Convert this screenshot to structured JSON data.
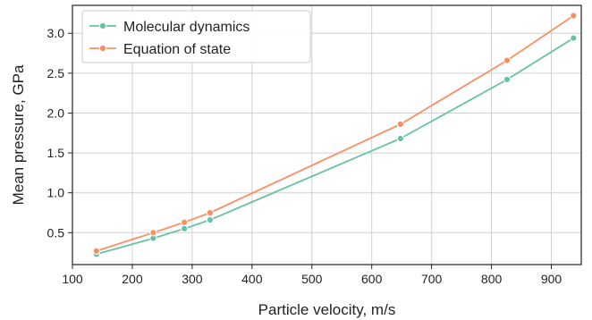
{
  "chart_data": {
    "type": "line",
    "xlabel": "Particle velocity, m/s",
    "ylabel": "Mean pressure, GPa",
    "xlim": [
      100,
      950
    ],
    "ylim": [
      0.1,
      3.35
    ],
    "xticks": [
      100,
      200,
      300,
      400,
      500,
      600,
      700,
      800,
      900
    ],
    "yticks": [
      0.5,
      1.0,
      1.5,
      2.0,
      2.5,
      3.0
    ],
    "xtick_labels": [
      "100",
      "200",
      "300",
      "400",
      "500",
      "600",
      "700",
      "800",
      "900"
    ],
    "ytick_labels": [
      "0.5",
      "1.0",
      "1.5",
      "2.0",
      "2.5",
      "3.0"
    ],
    "grid": true,
    "legend_position": "top-left",
    "series": [
      {
        "name": "Molecular dynamics",
        "color": "#66c2a5",
        "x": [
          140,
          235,
          287,
          330,
          648,
          826,
          937
        ],
        "y": [
          0.23,
          0.43,
          0.55,
          0.66,
          1.68,
          2.42,
          2.94
        ]
      },
      {
        "name": "Equation of state",
        "color": "#fc8d62",
        "x": [
          140,
          235,
          287,
          330,
          648,
          826,
          937
        ],
        "y": [
          0.27,
          0.5,
          0.63,
          0.75,
          1.86,
          2.66,
          3.22
        ]
      }
    ]
  }
}
